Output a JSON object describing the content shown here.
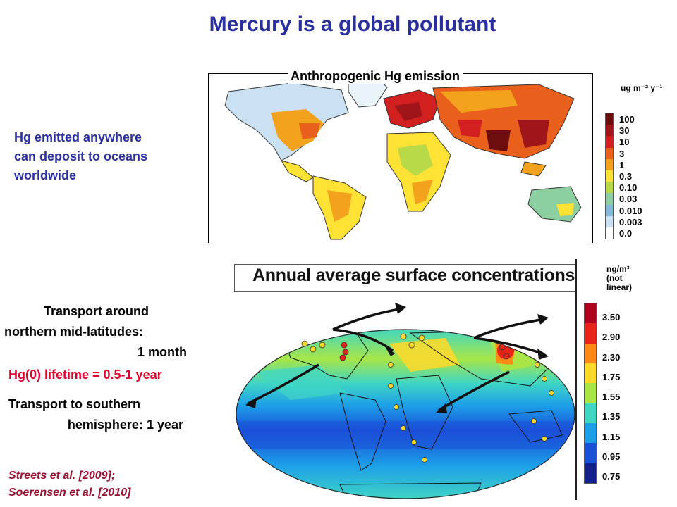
{
  "title": "Mercury is a global pollutant",
  "left_text": {
    "deposition": [
      "Hg emitted anywhere",
      "can deposit to oceans",
      "worldwide"
    ],
    "transport_north": [
      "Transport around",
      "northern mid-latitudes:",
      "1 month"
    ],
    "lifetime": "Hg(0) lifetime = 0.5-1 year",
    "transport_south": [
      "Transport to southern",
      "hemisphere: 1 year"
    ],
    "citations": [
      "Streets et al. [2009];",
      "Soerensen et al. [2010]"
    ]
  },
  "top_map": {
    "title": "Anthropogenic Hg emission",
    "unit": "ug m⁻² y⁻¹",
    "scale_labels": [
      "100",
      "30",
      "10",
      "3",
      "1",
      "0.3",
      "0.10",
      "0.03",
      "0.010",
      "0.003",
      "0.0"
    ],
    "scale_colors": [
      "#6e0d0d",
      "#a0151a",
      "#d21f1f",
      "#e8601c",
      "#f3a21e",
      "#ffe233",
      "#b8d948",
      "#8ccfa0",
      "#7fb8d8",
      "#c9e1f2",
      "#ffffff"
    ]
  },
  "bottom_map": {
    "title": "Annual average surface concentrations",
    "unit": [
      "ng/m³",
      "(not",
      "linear)"
    ],
    "scale_labels": [
      "3.50",
      "2.90",
      "2.30",
      "1.75",
      "1.55",
      "1.35",
      "1.15",
      "0.95",
      "0.75"
    ],
    "scale_colors": [
      "#b0001a",
      "#e8241a",
      "#ff8a16",
      "#ffd92a",
      "#a8e648",
      "#3fd6c4",
      "#1d9fe8",
      "#1a4fd8",
      "#12208a"
    ]
  }
}
